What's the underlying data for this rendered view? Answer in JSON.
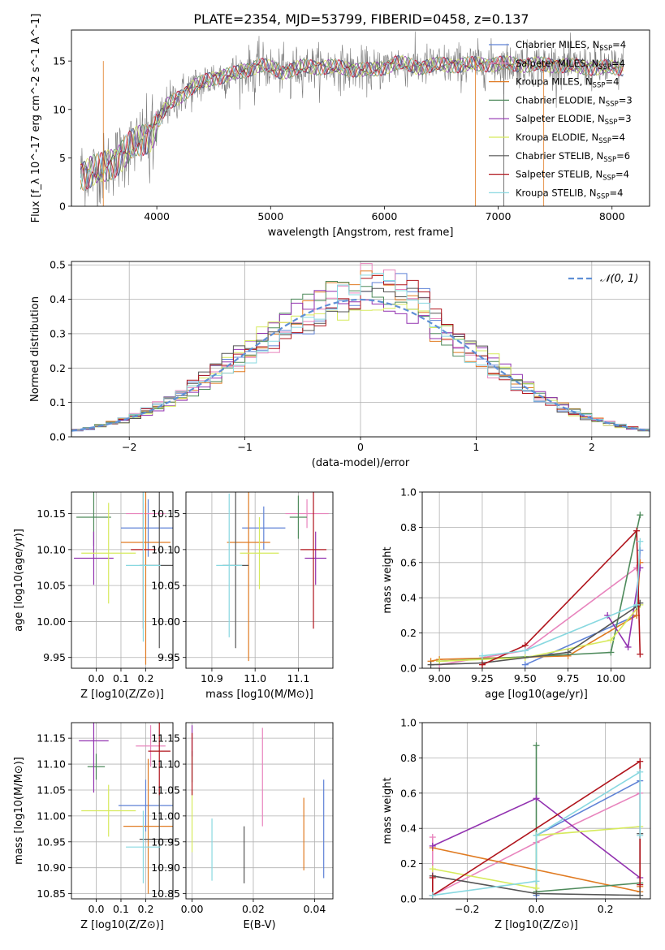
{
  "figure": {
    "title": "PLATE=2354, MJD=53799, FIBERID=0458, z=0.137"
  },
  "colors": {
    "Chabrier MILES": "#5f82d6",
    "Salpeter MILES": "#e884bd",
    "Kroupa MILES": "#e07b22",
    "Chabrier ELODIE": "#4e8a5b",
    "Salpeter ELODIE": "#9232b0",
    "Kroupa ELODIE": "#d6ea5c",
    "Chabrier STELIB": "#555555",
    "Salpeter STELIB": "#b0141c",
    "Kroupa STELIB": "#88d8e0",
    "normal_curve": "#5f8fd6",
    "grid": "#b0b0b0"
  },
  "chart_data": [
    {
      "id": "spectrum",
      "type": "line",
      "title": "PLATE=2354, MJD=53799, FIBERID=0458, z=0.137",
      "xlabel": "wavelength [Angstrom, rest frame]",
      "ylabel": "Flux [f_λ 10^-17 erg cm^-2 s^-1 A^-1]",
      "xlim": [
        3250,
        8330
      ],
      "ylim": [
        0,
        18.2
      ],
      "xticks": [
        4000,
        5000,
        6000,
        7000,
        8000
      ],
      "yticks": [
        0,
        5,
        10,
        15
      ],
      "grid": false,
      "legend_position": "right",
      "series_labels": [
        "Chabrier MILES, N_SSP=4",
        "Salpeter MILES, N_SSP=4",
        "Kroupa MILES, N_SSP=4",
        "Chabrier ELODIE, N_SSP=3",
        "Salpeter ELODIE, N_SSP=3",
        "Kroupa ELODIE, N_SSP=4",
        "Chabrier STELIB, N_SSP=6",
        "Salpeter STELIB, N_SSP=4",
        "Kroupa STELIB, N_SSP=4"
      ],
      "continuum_x": [
        3330,
        3500,
        3800,
        3950,
        4100,
        4300,
        4500,
        4700,
        4900,
        5100,
        5300,
        5500,
        5700,
        5900,
        6100,
        6300,
        6500,
        6700,
        6900,
        7100,
        7300,
        7500,
        7700,
        7900,
        8100
      ],
      "continuum_y": [
        3.5,
        3.6,
        6.3,
        7.5,
        10.5,
        12.2,
        13.3,
        13.7,
        14.6,
        13.9,
        14.4,
        14.4,
        14.2,
        14.0,
        14.8,
        14.4,
        14.6,
        14.6,
        14.7,
        14.7,
        14.6,
        14.6,
        14.4,
        14.3,
        14.3
      ]
    },
    {
      "id": "residuals",
      "type": "histogram",
      "xlabel": "(data-model)/error",
      "ylabel": "Normed distribution",
      "xlim": [
        -2.5,
        2.5
      ],
      "ylim": [
        0,
        0.51
      ],
      "xticks": [
        -2,
        -1,
        0,
        1,
        2
      ],
      "yticks": [
        0.0,
        0.1,
        0.2,
        0.3,
        0.4,
        0.5
      ],
      "grid": true,
      "legend": [
        "𝒩(0, 1)"
      ],
      "legend_position": "top-right"
    },
    {
      "id": "age_vs_Z",
      "type": "errorbar",
      "xlabel": "Z [log10(Z/Z⊙)]",
      "ylabel": "age [log10(age/yr)]",
      "xlim": [
        -0.1,
        0.31
      ],
      "ylim": [
        9.935,
        10.18
      ],
      "xticks": [
        0.0,
        0.1,
        0.2
      ],
      "yticks": [
        9.95,
        10.0,
        10.05,
        10.1,
        10.15
      ],
      "grid": true,
      "points": [
        {
          "series": "Chabrier MILES",
          "x": 0.21,
          "xerr": 0.11,
          "y": 10.13,
          "yerr": 0.04
        },
        {
          "series": "Salpeter MILES",
          "x": 0.2,
          "xerr": 0.08,
          "y": 10.15,
          "yerr": 0.015
        },
        {
          "series": "Kroupa MILES",
          "x": 0.2,
          "xerr": 0.1,
          "y": 10.11,
          "yerr": 0.17
        },
        {
          "series": "Chabrier ELODIE",
          "x": -0.01,
          "xerr": 0.07,
          "y": 10.145,
          "yerr": 0.04
        },
        {
          "series": "Salpeter ELODIE",
          "x": -0.01,
          "xerr": 0.08,
          "y": 10.088,
          "yerr": 0.037
        },
        {
          "series": "Kroupa ELODIE",
          "x": 0.05,
          "xerr": 0.11,
          "y": 10.095,
          "yerr": 0.07
        },
        {
          "series": "Chabrier STELIB",
          "x": 0.255,
          "xerr": 0.08,
          "y": 10.078,
          "yerr": 0.115
        },
        {
          "series": "Salpeter STELIB",
          "x": 0.19,
          "xerr": 0.05,
          "y": 10.1,
          "yerr": 0.11
        },
        {
          "series": "Kroupa STELIB",
          "x": 0.19,
          "xerr": 0.07,
          "y": 10.078,
          "yerr": 0.106
        }
      ]
    },
    {
      "id": "age_vs_mass",
      "type": "errorbar",
      "xlabel": "mass [log10(M/M⊙)]",
      "xlim": [
        10.84,
        11.18
      ],
      "ylim": [
        9.935,
        10.18
      ],
      "xticks": [
        10.9,
        11.0,
        11.1
      ],
      "yticks": [
        9.95,
        10.0,
        10.05,
        10.1,
        10.15
      ],
      "grid": true,
      "points": [
        {
          "series": "Chabrier MILES",
          "x": 11.02,
          "xerr": 0.05,
          "y": 10.13,
          "yerr": 0.03
        },
        {
          "series": "Salpeter MILES",
          "x": 11.12,
          "xerr": 0.05,
          "y": 10.15,
          "yerr": 0.02
        },
        {
          "series": "Kroupa MILES",
          "x": 10.985,
          "xerr": 0.05,
          "y": 10.11,
          "yerr": 0.165
        },
        {
          "series": "Chabrier ELODIE",
          "x": 11.1,
          "xerr": 0.02,
          "y": 10.145,
          "yerr": 0.03
        },
        {
          "series": "Salpeter ELODIE",
          "x": 11.14,
          "xerr": 0.025,
          "y": 10.088,
          "yerr": 0.037
        },
        {
          "series": "Kroupa ELODIE",
          "x": 11.01,
          "xerr": 0.045,
          "y": 10.095,
          "yerr": 0.05
        },
        {
          "series": "Chabrier STELIB",
          "x": 10.955,
          "xerr": 0.03,
          "y": 10.078,
          "yerr": 0.115
        },
        {
          "series": "Salpeter STELIB",
          "x": 11.135,
          "xerr": 0.03,
          "y": 10.1,
          "yerr": 0.11
        },
        {
          "series": "Kroupa STELIB",
          "x": 10.94,
          "xerr": 0.03,
          "y": 10.078,
          "yerr": 0.1
        }
      ]
    },
    {
      "id": "mass_weight_vs_age",
      "type": "line",
      "xlabel": "age [log10(age/yr)]",
      "ylabel": "mass weight",
      "xlim": [
        8.9,
        10.23
      ],
      "ylim": [
        0,
        1.0
      ],
      "xticks": [
        9.0,
        9.25,
        9.5,
        9.75,
        10.0
      ],
      "yticks": [
        0.0,
        0.2,
        0.4,
        0.6,
        0.8,
        1.0
      ],
      "grid": true,
      "series": [
        {
          "name": "Chabrier MILES",
          "x": [
            9.5,
            10.15,
            10.17
          ],
          "y": [
            0.02,
            0.3,
            0.67
          ]
        },
        {
          "name": "Salpeter MILES",
          "x": [
            9.0,
            9.5,
            10.15,
            10.17
          ],
          "y": [
            0.02,
            0.1,
            0.57,
            0.6
          ]
        },
        {
          "name": "Kroupa MILES",
          "x": [
            8.95,
            9.0,
            9.75,
            10.15,
            10.17
          ],
          "y": [
            0.04,
            0.05,
            0.07,
            0.3,
            0.6
          ]
        },
        {
          "name": "Chabrier ELODIE",
          "x": [
            9.0,
            10.0,
            10.17
          ],
          "y": [
            0.04,
            0.09,
            0.87
          ]
        },
        {
          "name": "Salpeter ELODIE",
          "x": [
            9.98,
            10.1,
            10.17
          ],
          "y": [
            0.3,
            0.12,
            0.57
          ]
        },
        {
          "name": "Kroupa ELODIE",
          "x": [
            9.0,
            9.5,
            10.0,
            10.17
          ],
          "y": [
            0.04,
            0.06,
            0.16,
            0.36
          ]
        },
        {
          "name": "Chabrier STELIB",
          "x": [
            8.95,
            9.25,
            9.75,
            10.15,
            10.17
          ],
          "y": [
            0.02,
            0.03,
            0.09,
            0.35,
            0.37
          ]
        },
        {
          "name": "Salpeter STELIB",
          "x": [
            9.25,
            9.5,
            10.15,
            10.17
          ],
          "y": [
            0.02,
            0.13,
            0.78,
            0.08
          ]
        },
        {
          "name": "Kroupa STELIB",
          "x": [
            9.25,
            9.5,
            10.15,
            10.17
          ],
          "y": [
            0.07,
            0.1,
            0.36,
            0.72
          ]
        }
      ]
    },
    {
      "id": "mass_vs_Z",
      "type": "errorbar",
      "xlabel": "Z [log10(Z/Z⊙)]",
      "ylabel": "mass [log10(M/M⊙)]",
      "xlim": [
        -0.1,
        0.31
      ],
      "ylim": [
        10.84,
        11.18
      ],
      "xticks": [
        0.0,
        0.1,
        0.2
      ],
      "yticks": [
        10.85,
        10.9,
        10.95,
        11.0,
        11.05,
        11.1,
        11.15
      ],
      "grid": true,
      "points": [
        {
          "series": "Chabrier MILES",
          "x": 0.2,
          "xerr": 0.11,
          "y": 11.02,
          "yerr": 0.05
        },
        {
          "series": "Salpeter MILES",
          "x": 0.22,
          "xerr": 0.06,
          "y": 11.135,
          "yerr": 0.04
        },
        {
          "series": "Kroupa MILES",
          "x": 0.21,
          "xerr": 0.1,
          "y": 10.98,
          "yerr": 0.13
        },
        {
          "series": "Chabrier ELODIE",
          "x": 0.0,
          "xerr": 0.035,
          "y": 11.095,
          "yerr": 0.025
        },
        {
          "series": "Salpeter ELODIE",
          "x": -0.01,
          "xerr": 0.06,
          "y": 11.145,
          "yerr": 0.1
        },
        {
          "series": "Kroupa ELODIE",
          "x": 0.05,
          "xerr": 0.11,
          "y": 11.01,
          "yerr": 0.05
        },
        {
          "series": "Chabrier STELIB",
          "x": 0.255,
          "xerr": 0.08,
          "y": 10.955,
          "yerr": 0.1
        },
        {
          "series": "Salpeter STELIB",
          "x": 0.255,
          "xerr": 0.045,
          "y": 11.125,
          "yerr": 0.085
        },
        {
          "series": "Kroupa STELIB",
          "x": 0.19,
          "xerr": 0.07,
          "y": 10.94,
          "yerr": 0.07
        }
      ]
    },
    {
      "id": "mass_vs_ebv",
      "type": "errorbar",
      "xlabel": "E(B-V)",
      "xlim": [
        -0.002,
        0.046
      ],
      "ylim": [
        10.84,
        11.18
      ],
      "xticks": [
        0.0,
        0.02,
        0.04
      ],
      "yticks": [
        10.85,
        10.9,
        10.95,
        11.0,
        11.05,
        11.1,
        11.15
      ],
      "grid": true,
      "points": [
        {
          "series": "Chabrier MILES",
          "x": 0.043,
          "y": 10.975,
          "yerr": 0.095
        },
        {
          "series": "Salpeter MILES",
          "x": 0.023,
          "y": 11.075,
          "yerr": 0.095
        },
        {
          "series": "Kroupa MILES",
          "x": 0.0365,
          "y": 10.965,
          "yerr": 0.07
        },
        {
          "series": "Chabrier ELODIE",
          "x": 0.0,
          "y": 11.095,
          "yerr": 0.03
        },
        {
          "series": "Salpeter ELODIE",
          "x": 0.0,
          "y": 11.145,
          "yerr": 0.03
        },
        {
          "series": "Kroupa ELODIE",
          "x": 0.0,
          "y": 10.99,
          "yerr": 0.06
        },
        {
          "series": "Chabrier STELIB",
          "x": 0.017,
          "y": 10.925,
          "yerr": 0.055
        },
        {
          "series": "Salpeter STELIB",
          "x": 0.0,
          "y": 11.1,
          "yerr": 0.06
        },
        {
          "series": "Kroupa STELIB",
          "x": 0.0065,
          "y": 10.935,
          "yerr": 0.06
        }
      ]
    },
    {
      "id": "mass_weight_vs_Z",
      "type": "line",
      "xlabel": "Z [log10(Z/Z⊙)]",
      "ylabel": "mass weight",
      "xlim": [
        -0.33,
        0.33
      ],
      "ylim": [
        0,
        1.0
      ],
      "xticks": [
        -0.2,
        0.0,
        0.2
      ],
      "yticks": [
        0.0,
        0.2,
        0.4,
        0.6,
        0.8,
        1.0
      ],
      "grid": true,
      "series": [
        {
          "name": "Chabrier MILES",
          "x": [
            0.0,
            0.0,
            0.3
          ],
          "y": [
            0.02,
            0.36,
            0.67
          ]
        },
        {
          "name": "Salpeter MILES",
          "x": [
            -0.3,
            -0.3,
            0.0,
            0.3
          ],
          "y": [
            0.35,
            0.02,
            0.32,
            0.6
          ]
        },
        {
          "name": "Kroupa MILES",
          "x": [
            -0.3,
            0.3,
            0.3
          ],
          "y": [
            0.29,
            0.04,
            0.07
          ]
        },
        {
          "name": "Chabrier ELODIE",
          "x": [
            0.0,
            0.0,
            0.3
          ],
          "y": [
            0.87,
            0.04,
            0.09
          ]
        },
        {
          "name": "Salpeter ELODIE",
          "x": [
            -0.3,
            0.0,
            0.3
          ],
          "y": [
            0.3,
            0.57,
            0.12
          ]
        },
        {
          "name": "Kroupa ELODIE",
          "x": [
            -0.3,
            0.0,
            0.0,
            0.3
          ],
          "y": [
            0.17,
            0.06,
            0.36,
            0.41
          ]
        },
        {
          "name": "Chabrier STELIB",
          "x": [
            -0.3,
            0.0,
            0.3,
            0.3
          ],
          "y": [
            0.13,
            0.03,
            0.02,
            0.37
          ]
        },
        {
          "name": "Salpeter STELIB",
          "x": [
            -0.3,
            -0.3,
            0.3,
            0.3
          ],
          "y": [
            0.12,
            0.02,
            0.78,
            0.08
          ]
        },
        {
          "name": "Kroupa STELIB",
          "x": [
            -0.3,
            0.0,
            0.0,
            0.3,
            0.3
          ],
          "y": [
            0.02,
            0.1,
            0.36,
            0.72,
            0.36
          ]
        }
      ]
    }
  ]
}
